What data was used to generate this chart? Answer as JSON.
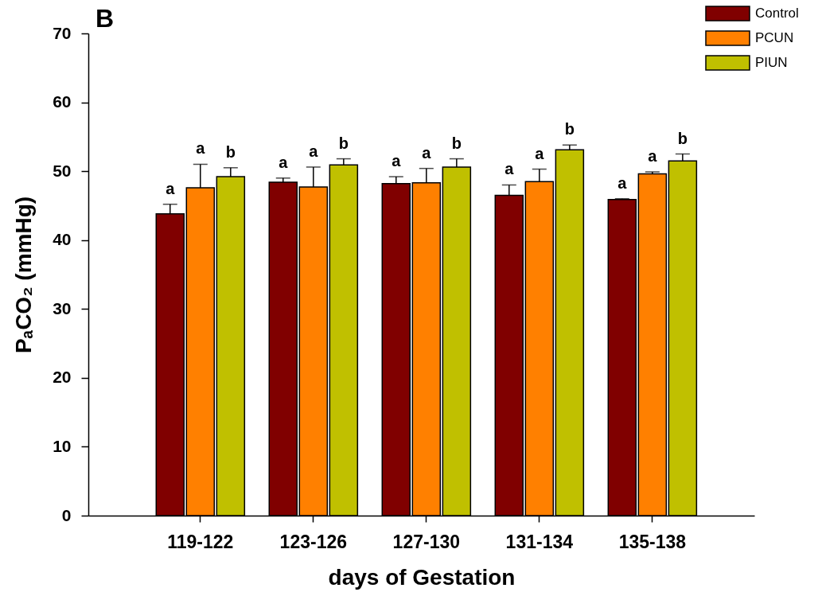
{
  "chart_data": {
    "type": "bar",
    "title": "B",
    "xlabel": "days of Gestation",
    "ylabel": "PₐCO₂ (mmHg)",
    "categories": [
      "119-122",
      "123-126",
      "127-130",
      "131-134",
      "135-138"
    ],
    "series": [
      {
        "name": "Control",
        "color": "#800000",
        "values": [
          43.8,
          48.4,
          48.2,
          46.5,
          45.9
        ],
        "errors": [
          [
            43.8,
            45.2
          ],
          [
            48.4,
            49.0
          ],
          [
            48.2,
            49.2
          ],
          [
            46.5,
            48.0
          ],
          [
            45.9,
            46.0
          ]
        ],
        "value_labels": [
          "a",
          "a",
          "a",
          "a",
          "a"
        ]
      },
      {
        "name": "PCUN",
        "color": "#ff8000",
        "values": [
          47.6,
          47.7,
          48.3,
          48.5,
          49.6
        ],
        "errors": [
          [
            47.6,
            51.0
          ],
          [
            47.7,
            50.6
          ],
          [
            48.3,
            50.4
          ],
          [
            48.5,
            50.3
          ],
          [
            49.6,
            49.9
          ]
        ],
        "value_labels": [
          "a",
          "a",
          "a",
          "a",
          "a"
        ]
      },
      {
        "name": "PIUN",
        "color": "#c0c000",
        "values": [
          49.2,
          50.9,
          50.6,
          53.1,
          51.5
        ],
        "errors": [
          [
            49.2,
            50.5
          ],
          [
            50.9,
            51.8
          ],
          [
            50.6,
            51.8
          ],
          [
            53.1,
            53.8
          ],
          [
            51.5,
            52.5
          ]
        ],
        "value_labels": [
          "b",
          "b",
          "b",
          "b",
          "b"
        ]
      }
    ],
    "ylim": [
      0,
      70
    ],
    "yticks": [
      0,
      10,
      20,
      30,
      40,
      50,
      60,
      70
    ],
    "legend": "top right"
  }
}
